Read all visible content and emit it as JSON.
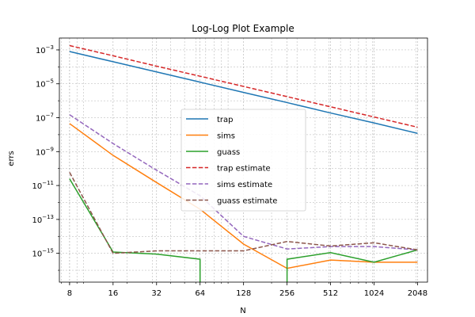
{
  "chart_data": {
    "type": "line",
    "title": "Log-Log Plot Example",
    "xlabel": "N",
    "ylabel": "errs",
    "xscale": "log2",
    "yscale": "log10",
    "grid": "major and minor, dashed",
    "legend_placement": "center",
    "x": [
      8,
      16,
      32,
      64,
      128,
      256,
      512,
      1024,
      2048
    ],
    "x_tick_labels": [
      "8",
      "16",
      "32",
      "64",
      "128",
      "256",
      "512",
      "1024",
      "2048"
    ],
    "y_ticks": [
      {
        "base": "10",
        "exp": "−3",
        "value": 0.001
      },
      {
        "base": "10",
        "exp": "−5",
        "value": 1e-05
      },
      {
        "base": "10",
        "exp": "−7",
        "value": 1e-07
      },
      {
        "base": "10",
        "exp": "−9",
        "value": 1e-09
      },
      {
        "base": "10",
        "exp": "−11",
        "value": 1e-11
      },
      {
        "base": "10",
        "exp": "−13",
        "value": 1e-13
      },
      {
        "base": "10",
        "exp": "−15",
        "value": 1e-15
      }
    ],
    "ylim": [
      2e-17,
      0.005
    ],
    "xlim": [
      6.8,
      2400
    ],
    "series": [
      {
        "name": "trap",
        "color": "#1f77b4",
        "dash": "solid",
        "values": [
          0.0008,
          0.0002,
          5e-05,
          1.25e-05,
          3.1e-06,
          7.8e-07,
          1.9e-07,
          4.9e-08,
          1.2e-08
        ]
      },
      {
        "name": "sims",
        "color": "#ff7f0e",
        "dash": "solid",
        "values": [
          4.5e-08,
          6e-10,
          1.5e-11,
          4e-13,
          3.5e-15,
          1.3e-16,
          4e-16,
          3e-16,
          3e-16
        ]
      },
      {
        "name": "guass",
        "color": "#2ca02c",
        "dash": "solid",
        "values": [
          2.5e-11,
          1.2e-15,
          9e-16,
          4.5e-16,
          null,
          4.5e-16,
          1.1e-15,
          3e-16,
          1.6e-15
        ],
        "drop_to_bottom": [
          {
            "from_index": 3,
            "x": 64
          }
        ],
        "rise_from_bottom": [
          {
            "to_index": 5,
            "x": 256
          }
        ]
      },
      {
        "name": "trap estimate",
        "color": "#d62728",
        "dash": "dashed",
        "values": [
          0.0018,
          0.00045,
          0.00011,
          2.8e-05,
          7e-06,
          1.75e-06,
          4.4e-07,
          1.1e-07,
          2.75e-08
        ]
      },
      {
        "name": "sims estimate",
        "color": "#9467bd",
        "dash": "dashed",
        "values": [
          1.5e-07,
          3e-09,
          8e-11,
          2.5e-12,
          1e-14,
          1.8e-15,
          2.5e-15,
          2.5e-15,
          1.6e-15
        ]
      },
      {
        "name": "guass estimate",
        "color": "#8c564b",
        "dash": "dashed",
        "values": [
          6e-11,
          1e-15,
          1.4e-15,
          1.4e-15,
          1.4e-15,
          5e-15,
          2.7e-15,
          4.2e-15,
          1.6e-15
        ]
      }
    ]
  }
}
